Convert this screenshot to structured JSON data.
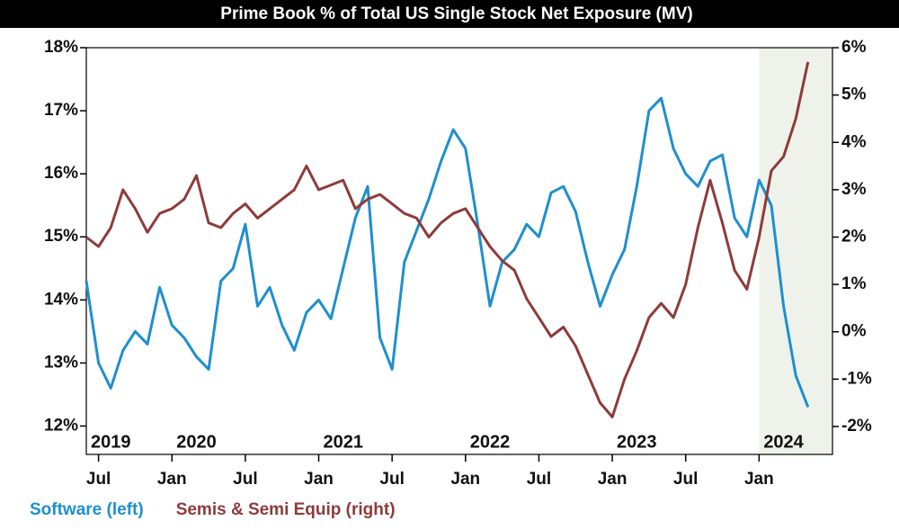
{
  "chart_data": {
    "type": "line",
    "title": "Prime Book % of Total US Single Stock Net Exposure (MV)",
    "x": [
      "2019-06",
      "2019-07",
      "2019-08",
      "2019-09",
      "2019-10",
      "2019-11",
      "2019-12",
      "2020-01",
      "2020-02",
      "2020-03",
      "2020-04",
      "2020-05",
      "2020-06",
      "2020-07",
      "2020-08",
      "2020-09",
      "2020-10",
      "2020-11",
      "2020-12",
      "2021-01",
      "2021-02",
      "2021-03",
      "2021-04",
      "2021-05",
      "2021-06",
      "2021-07",
      "2021-08",
      "2021-09",
      "2021-10",
      "2021-11",
      "2021-12",
      "2022-01",
      "2022-02",
      "2022-03",
      "2022-04",
      "2022-05",
      "2022-06",
      "2022-07",
      "2022-08",
      "2022-09",
      "2022-10",
      "2022-11",
      "2022-12",
      "2023-01",
      "2023-02",
      "2023-03",
      "2023-04",
      "2023-05",
      "2023-06",
      "2023-07",
      "2023-08",
      "2023-09",
      "2023-10",
      "2023-11",
      "2023-12",
      "2024-01",
      "2024-02",
      "2024-03",
      "2024-04",
      "2024-05"
    ],
    "series": [
      {
        "name": "Software (left)",
        "color": "#1e8fcf",
        "axis": "y",
        "values": [
          14.3,
          13.0,
          12.6,
          13.2,
          13.5,
          13.3,
          14.2,
          13.6,
          13.4,
          13.1,
          12.9,
          14.3,
          14.5,
          15.2,
          13.9,
          14.2,
          13.6,
          13.2,
          13.8,
          14.0,
          13.7,
          14.5,
          15.3,
          15.8,
          13.4,
          12.9,
          14.6,
          15.1,
          15.6,
          16.2,
          16.7,
          16.4,
          15.2,
          13.9,
          14.6,
          14.8,
          15.2,
          15.0,
          15.7,
          15.8,
          15.4,
          14.6,
          13.9,
          14.4,
          14.8,
          15.8,
          17.0,
          17.2,
          16.4,
          16.0,
          15.8,
          16.2,
          16.3,
          15.3,
          15.0,
          15.9,
          15.5,
          13.9,
          12.8,
          12.3
        ]
      },
      {
        "name": "Semis & Semi Equip (right)",
        "color": "#8e3b3b",
        "axis": "y2",
        "values": [
          2.0,
          1.8,
          2.2,
          3.0,
          2.6,
          2.1,
          2.5,
          2.6,
          2.8,
          3.3,
          2.3,
          2.2,
          2.5,
          2.7,
          2.4,
          2.6,
          2.8,
          3.0,
          3.5,
          3.0,
          3.1,
          3.2,
          2.6,
          2.8,
          2.9,
          2.7,
          2.5,
          2.4,
          2.0,
          2.3,
          2.5,
          2.6,
          2.2,
          1.8,
          1.5,
          1.3,
          0.7,
          0.3,
          -0.1,
          0.1,
          -0.3,
          -0.9,
          -1.5,
          -1.8,
          -1.0,
          -0.4,
          0.3,
          0.6,
          0.3,
          1.0,
          2.2,
          3.2,
          2.3,
          1.3,
          0.9,
          2.0,
          3.4,
          3.7,
          4.5,
          5.7
        ]
      }
    ],
    "xlim": [
      "2019-06",
      "2024-07"
    ],
    "xticks": [
      {
        "value": "2019-07",
        "label": "Jul"
      },
      {
        "value": "2020-01",
        "label": "Jan"
      },
      {
        "value": "2020-07",
        "label": "Jul"
      },
      {
        "value": "2021-01",
        "label": "Jan"
      },
      {
        "value": "2021-07",
        "label": "Jul"
      },
      {
        "value": "2022-01",
        "label": "Jan"
      },
      {
        "value": "2022-07",
        "label": "Jul"
      },
      {
        "value": "2023-01",
        "label": "Jan"
      },
      {
        "value": "2023-07",
        "label": "Jul"
      },
      {
        "value": "2024-01",
        "label": "Jan"
      }
    ],
    "year_labels": [
      {
        "value": "2019-08",
        "label": "2019"
      },
      {
        "value": "2020-03",
        "label": "2020"
      },
      {
        "value": "2021-03",
        "label": "2021"
      },
      {
        "value": "2022-03",
        "label": "2022"
      },
      {
        "value": "2023-03",
        "label": "2023"
      },
      {
        "value": "2024-03",
        "label": "2024"
      }
    ],
    "ylim": [
      11.55,
      18
    ],
    "yticks": [
      {
        "value": 12,
        "label": "12%"
      },
      {
        "value": 13,
        "label": "13%"
      },
      {
        "value": 14,
        "label": "14%"
      },
      {
        "value": 15,
        "label": "15%"
      },
      {
        "value": 16,
        "label": "16%"
      },
      {
        "value": 17,
        "label": "17%"
      },
      {
        "value": 18,
        "label": "18%"
      }
    ],
    "y2lim": [
      -2.59,
      6
    ],
    "y2ticks": [
      {
        "value": -2,
        "label": "-2%"
      },
      {
        "value": -1,
        "label": "-1%"
      },
      {
        "value": 0,
        "label": "0%"
      },
      {
        "value": 1,
        "label": "1%"
      },
      {
        "value": 2,
        "label": "2%"
      },
      {
        "value": 3,
        "label": "3%"
      },
      {
        "value": 4,
        "label": "4%"
      },
      {
        "value": 5,
        "label": "5%"
      },
      {
        "value": 6,
        "label": "6%"
      }
    ],
    "highlight_from": "2024-01",
    "highlight_color": "#eef2ea",
    "grid": false
  }
}
